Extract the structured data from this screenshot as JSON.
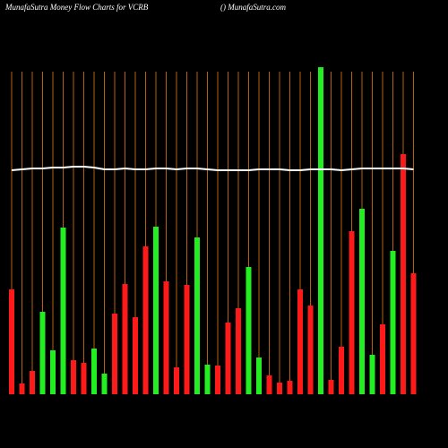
{
  "chart_data": {
    "type": "bar",
    "title": "MunafaSutra  Money Flow  Charts for VCRB",
    "subtitle": "() MunafaSutra.com",
    "values": [
      117,
      12,
      26,
      92,
      49,
      186,
      38,
      35,
      51,
      23,
      90,
      123,
      86,
      165,
      187,
      126,
      30,
      122,
      175,
      33,
      32,
      80,
      96,
      142,
      41,
      21,
      13,
      15,
      117,
      99,
      365,
      16,
      53,
      182,
      207,
      44,
      78,
      160,
      268,
      135
    ],
    "colors": [
      "#ff1a1a",
      "#ff1a1a",
      "#ff1a1a",
      "#22ee22",
      "#22ee22",
      "#22ee22",
      "#ff1a1a",
      "#ff1a1a",
      "#22ee22",
      "#22ee22",
      "#ff1a1a",
      "#ff1a1a",
      "#ff1a1a",
      "#ff1a1a",
      "#22ee22",
      "#ff1a1a",
      "#ff1a1a",
      "#ff1a1a",
      "#22ee22",
      "#22ee22",
      "#ff1a1a",
      "#ff1a1a",
      "#ff1a1a",
      "#22ee22",
      "#22ee22",
      "#ff1a1a",
      "#ff1a1a",
      "#ff1a1a",
      "#ff1a1a",
      "#ff1a1a",
      "#22ee22",
      "#ff1a1a",
      "#ff1a1a",
      "#ff1a1a",
      "#22ee22",
      "#22ee22",
      "#ff1a1a",
      "#22ee22",
      "#ff1a1a",
      "#ff1a1a"
    ],
    "line_values": [
      250,
      251,
      252,
      252,
      253,
      253,
      254,
      254,
      253,
      251,
      251,
      252,
      251,
      251,
      252,
      252,
      251,
      252,
      252,
      251,
      250,
      250,
      250,
      250,
      251,
      251,
      251,
      250,
      250,
      251,
      251,
      251,
      250,
      251,
      252,
      252,
      252,
      252,
      252,
      251
    ],
    "line_color": "#ffffff",
    "gridline_color": "#b8600a",
    "ylim": [
      0,
      365
    ]
  }
}
